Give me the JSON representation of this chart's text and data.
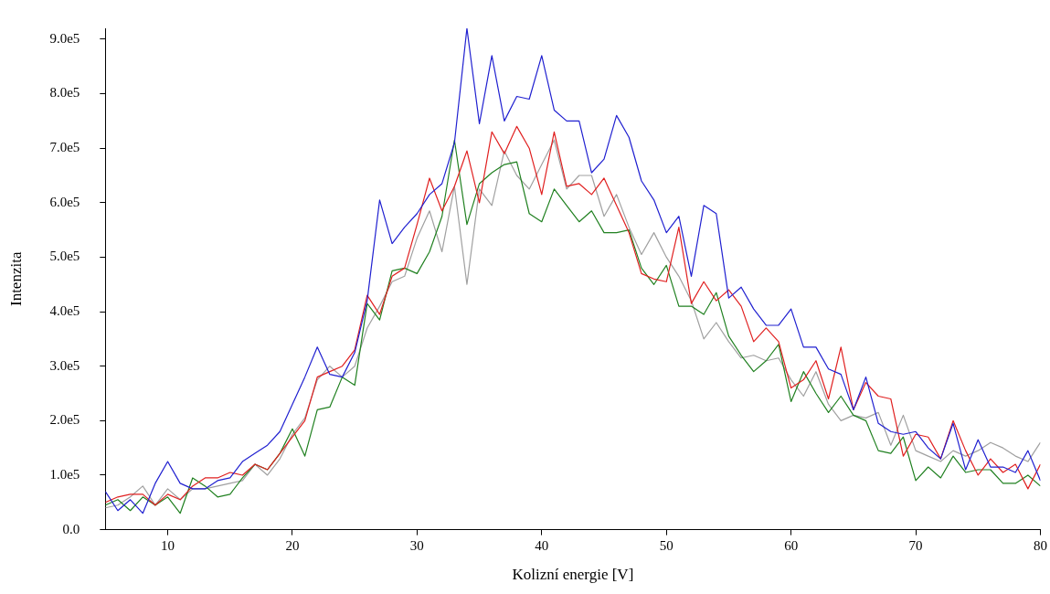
{
  "chart_data": {
    "type": "line",
    "xlabel": "Kolizní energie [V]",
    "ylabel": "Intenzita",
    "x": [
      5,
      6,
      7,
      8,
      9,
      10,
      11,
      12,
      13,
      14,
      15,
      16,
      17,
      18,
      19,
      20,
      21,
      22,
      23,
      24,
      25,
      26,
      27,
      28,
      29,
      30,
      31,
      32,
      33,
      34,
      35,
      36,
      37,
      38,
      39,
      40,
      41,
      42,
      43,
      44,
      45,
      46,
      47,
      48,
      49,
      50,
      51,
      52,
      53,
      54,
      55,
      56,
      57,
      58,
      59,
      60,
      61,
      62,
      63,
      64,
      65,
      66,
      67,
      68,
      69,
      70,
      71,
      72,
      73,
      74,
      75,
      76,
      77,
      78,
      79,
      80
    ],
    "series": [
      {
        "color": "#2020d0",
        "values": [
          70000,
          35000,
          55000,
          30000,
          85000,
          125000,
          85000,
          75000,
          75000,
          90000,
          95000,
          125000,
          140000,
          155000,
          180000,
          230000,
          280000,
          335000,
          285000,
          280000,
          325000,
          420000,
          605000,
          525000,
          555000,
          580000,
          615000,
          635000,
          710000,
          920000,
          745000,
          870000,
          750000,
          795000,
          790000,
          870000,
          770000,
          750000,
          750000,
          655000,
          680000,
          760000,
          720000,
          640000,
          605000,
          545000,
          575000,
          465000,
          595000,
          580000,
          425000,
          445000,
          405000,
          375000,
          375000,
          405000,
          335000,
          335000,
          295000,
          285000,
          220000,
          280000,
          195000,
          180000,
          175000,
          180000,
          150000,
          130000,
          195000,
          110000,
          165000,
          115000,
          115000,
          105000,
          145000,
          90000
        ]
      },
      {
        "color": "#e02020",
        "values": [
          50000,
          60000,
          65000,
          65000,
          45000,
          65000,
          55000,
          80000,
          95000,
          95000,
          105000,
          100000,
          120000,
          110000,
          140000,
          170000,
          200000,
          280000,
          290000,
          300000,
          330000,
          430000,
          395000,
          465000,
          480000,
          560000,
          645000,
          585000,
          630000,
          695000,
          600000,
          730000,
          690000,
          740000,
          700000,
          615000,
          730000,
          630000,
          635000,
          615000,
          645000,
          595000,
          545000,
          470000,
          460000,
          455000,
          555000,
          415000,
          455000,
          420000,
          440000,
          410000,
          345000,
          370000,
          345000,
          260000,
          275000,
          310000,
          240000,
          335000,
          220000,
          270000,
          245000,
          240000,
          135000,
          175000,
          170000,
          130000,
          200000,
          145000,
          100000,
          130000,
          105000,
          120000,
          75000,
          120000
        ]
      },
      {
        "color": "#208020",
        "values": [
          45000,
          55000,
          35000,
          60000,
          45000,
          60000,
          30000,
          95000,
          80000,
          60000,
          65000,
          95000,
          120000,
          110000,
          140000,
          185000,
          135000,
          220000,
          225000,
          280000,
          265000,
          415000,
          385000,
          475000,
          480000,
          470000,
          510000,
          575000,
          715000,
          560000,
          635000,
          655000,
          670000,
          675000,
          580000,
          565000,
          625000,
          595000,
          565000,
          585000,
          545000,
          545000,
          550000,
          480000,
          450000,
          485000,
          410000,
          410000,
          395000,
          435000,
          355000,
          320000,
          290000,
          310000,
          340000,
          235000,
          290000,
          250000,
          215000,
          245000,
          210000,
          200000,
          145000,
          140000,
          170000,
          90000,
          115000,
          95000,
          135000,
          105000,
          110000,
          110000,
          85000,
          85000,
          100000,
          80000
        ]
      },
      {
        "color": "#a0a0a0",
        "values": [
          40000,
          45000,
          60000,
          80000,
          45000,
          75000,
          55000,
          75000,
          75000,
          80000,
          85000,
          90000,
          120000,
          100000,
          130000,
          175000,
          205000,
          275000,
          300000,
          280000,
          300000,
          370000,
          410000,
          455000,
          465000,
          535000,
          585000,
          510000,
          630000,
          450000,
          625000,
          595000,
          695000,
          650000,
          625000,
          670000,
          715000,
          625000,
          650000,
          650000,
          575000,
          615000,
          555000,
          505000,
          545000,
          500000,
          465000,
          420000,
          350000,
          380000,
          345000,
          315000,
          320000,
          310000,
          315000,
          275000,
          245000,
          290000,
          230000,
          200000,
          210000,
          205000,
          215000,
          155000,
          210000,
          145000,
          135000,
          125000,
          145000,
          135000,
          145000,
          160000,
          150000,
          135000,
          125000,
          160000
        ]
      }
    ],
    "xlim": [
      5,
      80
    ],
    "ylim": [
      0,
      920000
    ],
    "xticks": [
      10,
      20,
      30,
      40,
      50,
      60,
      70,
      80
    ],
    "yticks": [
      {
        "value": 0,
        "label": "0.0"
      },
      {
        "value": 100000,
        "label": "1.0e5"
      },
      {
        "value": 200000,
        "label": "2.0e5"
      },
      {
        "value": 300000,
        "label": "3.0e5"
      },
      {
        "value": 400000,
        "label": "4.0e5"
      },
      {
        "value": 500000,
        "label": "5.0e5"
      },
      {
        "value": 600000,
        "label": "6.0e5"
      },
      {
        "value": 700000,
        "label": "7.0e5"
      },
      {
        "value": 800000,
        "label": "8.0e5"
      },
      {
        "value": 900000,
        "label": "9.0e5"
      }
    ],
    "grid": false,
    "legend": false,
    "marker": "none",
    "line_style": "solid"
  }
}
